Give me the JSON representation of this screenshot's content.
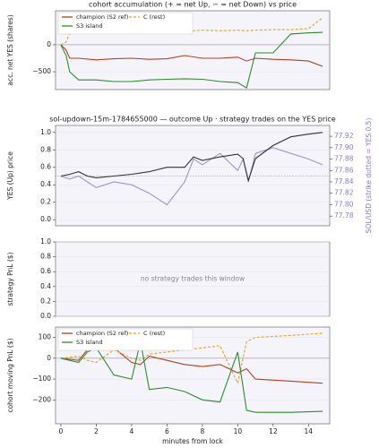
{
  "chart_data": [
    {
      "type": "line",
      "title": "cohort accumulation (+ = net Up, − = net Down) vs price",
      "ylabel": "acc. net YES (shares)",
      "legend": "upper left",
      "zero_line": true,
      "xlim": [
        -0.3,
        15.2
      ],
      "ylim": [
        -830,
        630
      ],
      "yticks": [
        0,
        {
          "value": -500,
          "label": "−500"
        }
      ],
      "x": [
        0,
        0.3,
        0.5,
        1,
        2,
        3,
        4,
        5,
        6,
        7,
        8,
        9,
        10,
        10.5,
        11,
        12,
        13,
        14,
        14.8
      ],
      "series": [
        {
          "name": "champion (S2 ref)",
          "color": "#b5401f",
          "dash": false,
          "values": [
            0,
            -100,
            -250,
            -250,
            -280,
            -260,
            -250,
            -270,
            -260,
            -200,
            -250,
            -250,
            -230,
            -300,
            -250,
            -270,
            -280,
            -300,
            -400
          ]
        },
        {
          "name": "C (rest)",
          "color": "#e0a31c",
          "dash": true,
          "values": [
            0,
            50,
            220,
            250,
            260,
            250,
            230,
            220,
            240,
            250,
            270,
            260,
            270,
            260,
            270,
            280,
            280,
            300,
            500
          ]
        },
        {
          "name": "S3 island",
          "color": "#2e8b2e",
          "dash": false,
          "values": [
            0,
            -200,
            -500,
            -650,
            -650,
            -680,
            -680,
            -650,
            -640,
            -630,
            -640,
            -680,
            -700,
            -800,
            -150,
            -150,
            200,
            220,
            230
          ]
        }
      ]
    },
    {
      "type": "line",
      "title": "sol-updown-15m-1784655000 — outcome Up · strategy trades on the YES price",
      "ylabel": "YES (Up) price",
      "y2label": "SOL/USD (strike dotted = YES 0.5)",
      "hline": 0.5,
      "xlim": [
        -0.3,
        15.2
      ],
      "ylim": [
        -0.07,
        1.08
      ],
      "y2lim": [
        77.763,
        77.939
      ],
      "yticks": [
        {
          "value": 0,
          "label": "0.0"
        },
        0.2,
        0.4,
        0.6,
        0.8,
        {
          "value": 1,
          "label": "1.0"
        }
      ],
      "y2ticks": [
        77.78,
        {
          "value": 77.8,
          "label": "77.80"
        },
        77.82,
        77.84,
        77.86,
        77.88,
        {
          "value": 77.9,
          "label": "77.90"
        },
        77.92
      ],
      "x": [
        0,
        0.5,
        1,
        1.5,
        2,
        3,
        4,
        5,
        6,
        7,
        7.5,
        8,
        9,
        10,
        10.3,
        10.6,
        11,
        12,
        13,
        14,
        14.8
      ],
      "series": [
        {
          "name": "SOL/USD",
          "color": "#a493c8",
          "dash": false,
          "axis": "y2",
          "values": [
            77.85,
            77.845,
            77.85,
            77.84,
            77.83,
            77.84,
            77.835,
            77.82,
            77.8,
            77.84,
            77.88,
            77.87,
            77.89,
            77.86,
            77.88,
            77.84,
            77.89,
            77.9,
            77.89,
            77.88,
            77.87
          ]
        },
        {
          "name": "YES (Up) price",
          "color": "#333333",
          "dash": false,
          "values": [
            0.5,
            0.52,
            0.55,
            0.5,
            0.48,
            0.5,
            0.52,
            0.55,
            0.6,
            0.6,
            0.72,
            0.68,
            0.72,
            0.75,
            0.7,
            0.45,
            0.7,
            0.85,
            0.95,
            0.98,
            1.0
          ]
        }
      ]
    },
    {
      "type": "empty",
      "ylabel": "strategy PnL ($)",
      "annotation": "no strategy trades this window",
      "xlim": [
        -0.3,
        15.2
      ],
      "ylim": [
        0,
        1
      ],
      "yticks": [
        {
          "value": 0,
          "label": "0.0"
        },
        0.2,
        0.4,
        0.6,
        0.8,
        {
          "value": 1,
          "label": "1.0"
        }
      ]
    },
    {
      "type": "line",
      "ylabel": "cohort moving PnL ($)",
      "xlabel": "minutes from lock",
      "legend": "upper left",
      "zero_line": true,
      "xlim": [
        -0.3,
        15.2
      ],
      "ylim": [
        -315,
        150
      ],
      "xticks": [
        0,
        2,
        4,
        6,
        8,
        10,
        12,
        14
      ],
      "yticks": [
        {
          "value": -200,
          "label": "−200"
        },
        {
          "value": -100,
          "label": "−100"
        },
        0,
        100
      ],
      "x": [
        0,
        0.5,
        1,
        1.5,
        2,
        3,
        4,
        4.5,
        5,
        6,
        7,
        8,
        9,
        10,
        10.5,
        11,
        13,
        14.8
      ],
      "series": [
        {
          "name": "champion (S2 ref)",
          "color": "#b5401f",
          "dash": false,
          "values": [
            0,
            -5,
            -10,
            40,
            60,
            50,
            -20,
            -30,
            10,
            -10,
            -30,
            -40,
            -30,
            -70,
            -50,
            -100,
            -110,
            -120
          ]
        },
        {
          "name": "C (rest)",
          "color": "#e0a31c",
          "dash": true,
          "values": [
            0,
            5,
            10,
            -10,
            -20,
            40,
            0,
            -10,
            20,
            30,
            40,
            50,
            60,
            -120,
            80,
            100,
            110,
            120
          ]
        },
        {
          "name": "S3 island",
          "color": "#2e8b2e",
          "dash": false,
          "values": [
            0,
            -10,
            -20,
            30,
            50,
            -80,
            -100,
            80,
            -150,
            -140,
            -160,
            -200,
            -210,
            30,
            -250,
            -260,
            -260,
            -255
          ]
        }
      ]
    }
  ]
}
